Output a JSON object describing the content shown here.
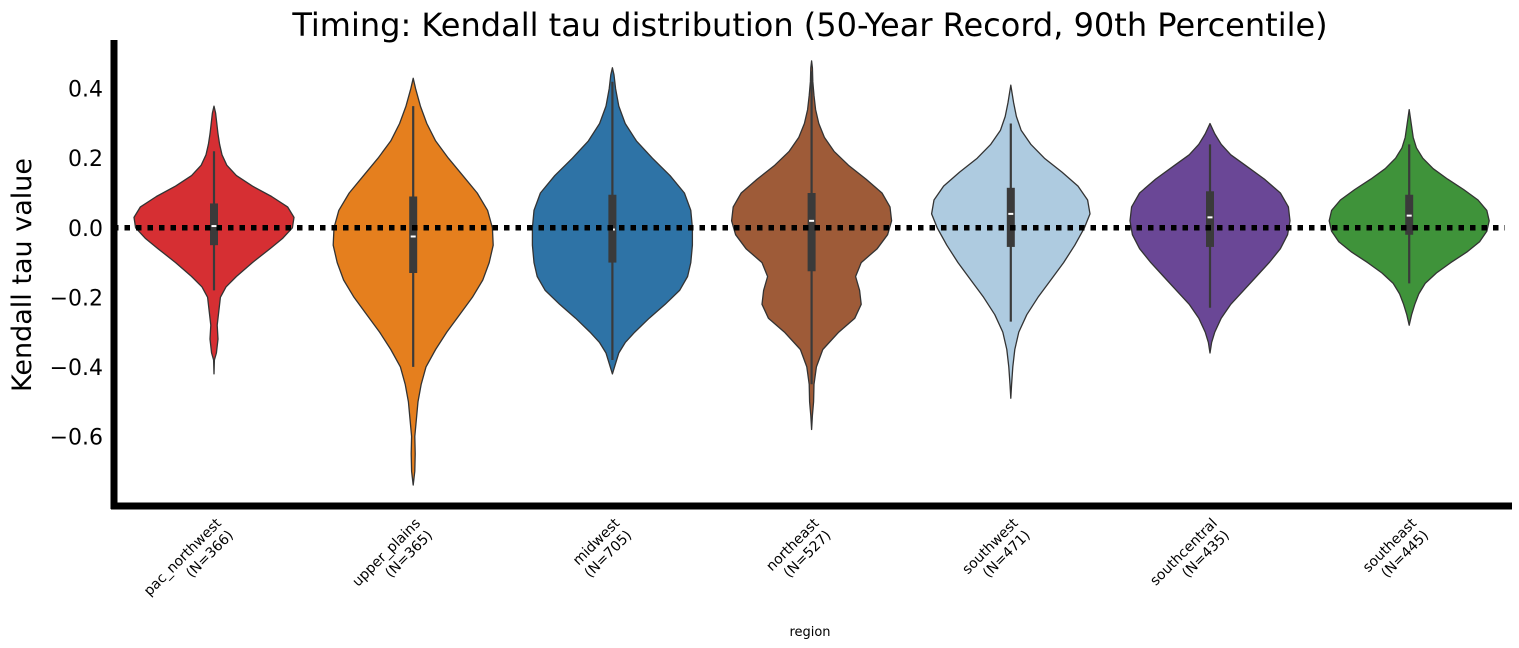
{
  "chart_data": {
    "type": "violin",
    "title": "Timing: Kendall tau distribution (50-Year Record, 90th Percentile)",
    "xlabel": "region",
    "ylabel": "Kendall tau value",
    "ylim": [
      -0.8,
      0.54
    ],
    "yticks": [
      {
        "value": 0.4,
        "label": "0.4"
      },
      {
        "value": 0.2,
        "label": "0.2"
      },
      {
        "value": 0.0,
        "label": "0.0"
      },
      {
        "value": -0.2,
        "label": "−0.2"
      },
      {
        "value": -0.4,
        "label": "−0.4"
      },
      {
        "value": -0.6,
        "label": "−0.6"
      }
    ],
    "reference_line": {
      "y": 0.0,
      "style": "dotted",
      "color": "#000000"
    },
    "grid": false,
    "categories": [
      {
        "line1": "pac_northwest",
        "line2": "(N=366)"
      },
      {
        "line1": "upper_plains",
        "line2": "(N=365)"
      },
      {
        "line1": "midwest",
        "line2": "(N=705)"
      },
      {
        "line1": "northeast",
        "line2": "(N=527)"
      },
      {
        "line1": "southwest",
        "line2": "(N=471)"
      },
      {
        "line1": "southcentral",
        "line2": "(N=435)"
      },
      {
        "line1": "southeast",
        "line2": "(N=445)"
      }
    ],
    "series": [
      {
        "color": "#d62f33",
        "min": -0.42,
        "max": 0.35,
        "q1": -0.05,
        "median": 0.005,
        "q3": 0.07,
        "whisker_low": -0.18,
        "whisker_high": 0.22,
        "profile": [
          [
            -0.42,
            0
          ],
          [
            -0.38,
            0.005
          ],
          [
            -0.36,
            0.03
          ],
          [
            -0.32,
            0.05
          ],
          [
            -0.28,
            0.04
          ],
          [
            -0.24,
            0.06
          ],
          [
            -0.2,
            0.08
          ],
          [
            -0.17,
            0.15
          ],
          [
            -0.14,
            0.28
          ],
          [
            -0.1,
            0.48
          ],
          [
            -0.06,
            0.7
          ],
          [
            -0.03,
            0.86
          ],
          [
            0.0,
            0.98
          ],
          [
            0.03,
            1.0
          ],
          [
            0.06,
            0.92
          ],
          [
            0.09,
            0.72
          ],
          [
            0.12,
            0.48
          ],
          [
            0.15,
            0.28
          ],
          [
            0.18,
            0.16
          ],
          [
            0.21,
            0.1
          ],
          [
            0.24,
            0.07
          ],
          [
            0.27,
            0.05
          ],
          [
            0.3,
            0.035
          ],
          [
            0.33,
            0.02
          ],
          [
            0.35,
            0
          ]
        ]
      },
      {
        "color": "#e57f1e",
        "min": -0.74,
        "max": 0.43,
        "q1": -0.13,
        "median": -0.025,
        "q3": 0.09,
        "whisker_low": -0.4,
        "whisker_high": 0.35,
        "profile": [
          [
            -0.74,
            0
          ],
          [
            -0.7,
            0.02
          ],
          [
            -0.65,
            0.025
          ],
          [
            -0.6,
            0.02
          ],
          [
            -0.55,
            0.04
          ],
          [
            -0.5,
            0.06
          ],
          [
            -0.45,
            0.1
          ],
          [
            -0.4,
            0.16
          ],
          [
            -0.35,
            0.28
          ],
          [
            -0.3,
            0.42
          ],
          [
            -0.25,
            0.58
          ],
          [
            -0.2,
            0.74
          ],
          [
            -0.15,
            0.87
          ],
          [
            -0.1,
            0.95
          ],
          [
            -0.05,
            1.0
          ],
          [
            0.0,
            0.99
          ],
          [
            0.05,
            0.93
          ],
          [
            0.1,
            0.8
          ],
          [
            0.15,
            0.62
          ],
          [
            0.2,
            0.44
          ],
          [
            0.25,
            0.28
          ],
          [
            0.3,
            0.17
          ],
          [
            0.35,
            0.09
          ],
          [
            0.4,
            0.03
          ],
          [
            0.43,
            0
          ]
        ]
      },
      {
        "color": "#2e73a6",
        "min": -0.42,
        "max": 0.46,
        "q1": -0.1,
        "median": -0.005,
        "q3": 0.095,
        "whisker_low": -0.38,
        "whisker_high": 0.42,
        "profile": [
          [
            -0.42,
            0
          ],
          [
            -0.39,
            0.04
          ],
          [
            -0.36,
            0.08
          ],
          [
            -0.33,
            0.16
          ],
          [
            -0.3,
            0.28
          ],
          [
            -0.26,
            0.46
          ],
          [
            -0.22,
            0.66
          ],
          [
            -0.18,
            0.84
          ],
          [
            -0.14,
            0.94
          ],
          [
            -0.1,
            0.98
          ],
          [
            -0.05,
            1.0
          ],
          [
            0.0,
            1.0
          ],
          [
            0.05,
            0.98
          ],
          [
            0.1,
            0.9
          ],
          [
            0.15,
            0.72
          ],
          [
            0.2,
            0.5
          ],
          [
            0.25,
            0.3
          ],
          [
            0.3,
            0.16
          ],
          [
            0.35,
            0.08
          ],
          [
            0.4,
            0.04
          ],
          [
            0.44,
            0.02
          ],
          [
            0.46,
            0
          ]
        ]
      },
      {
        "color": "#9e5b38",
        "min": -0.58,
        "max": 0.48,
        "q1": -0.125,
        "median": 0.02,
        "q3": 0.1,
        "whisker_low": -0.45,
        "whisker_high": 0.45,
        "profile": [
          [
            -0.58,
            0
          ],
          [
            -0.54,
            0.01
          ],
          [
            -0.5,
            0.025
          ],
          [
            -0.45,
            0.03
          ],
          [
            -0.4,
            0.06
          ],
          [
            -0.35,
            0.14
          ],
          [
            -0.3,
            0.34
          ],
          [
            -0.26,
            0.54
          ],
          [
            -0.22,
            0.62
          ],
          [
            -0.18,
            0.6
          ],
          [
            -0.14,
            0.55
          ],
          [
            -0.1,
            0.62
          ],
          [
            -0.06,
            0.82
          ],
          [
            -0.02,
            0.95
          ],
          [
            0.02,
            1.0
          ],
          [
            0.06,
            0.98
          ],
          [
            0.1,
            0.88
          ],
          [
            0.14,
            0.68
          ],
          [
            0.18,
            0.46
          ],
          [
            0.22,
            0.28
          ],
          [
            0.26,
            0.16
          ],
          [
            0.3,
            0.09
          ],
          [
            0.34,
            0.05
          ],
          [
            0.38,
            0.03
          ],
          [
            0.42,
            0.015
          ],
          [
            0.46,
            0.01
          ],
          [
            0.48,
            0
          ]
        ]
      },
      {
        "color": "#aecbe0",
        "min": -0.49,
        "max": 0.41,
        "q1": -0.055,
        "median": 0.04,
        "q3": 0.115,
        "whisker_low": -0.27,
        "whisker_high": 0.3,
        "profile": [
          [
            -0.49,
            0
          ],
          [
            -0.45,
            0.01
          ],
          [
            -0.4,
            0.025
          ],
          [
            -0.35,
            0.05
          ],
          [
            -0.3,
            0.1
          ],
          [
            -0.25,
            0.2
          ],
          [
            -0.2,
            0.34
          ],
          [
            -0.15,
            0.5
          ],
          [
            -0.1,
            0.66
          ],
          [
            -0.05,
            0.8
          ],
          [
            0.0,
            0.92
          ],
          [
            0.04,
            0.99
          ],
          [
            0.08,
            0.96
          ],
          [
            0.12,
            0.84
          ],
          [
            0.16,
            0.64
          ],
          [
            0.2,
            0.42
          ],
          [
            0.24,
            0.25
          ],
          [
            0.28,
            0.13
          ],
          [
            0.32,
            0.07
          ],
          [
            0.36,
            0.035
          ],
          [
            0.41,
            0
          ]
        ]
      },
      {
        "color": "#6a4796",
        "min": -0.36,
        "max": 0.3,
        "q1": -0.055,
        "median": 0.03,
        "q3": 0.105,
        "whisker_low": -0.23,
        "whisker_high": 0.24,
        "profile": [
          [
            -0.36,
            0
          ],
          [
            -0.33,
            0.02
          ],
          [
            -0.3,
            0.06
          ],
          [
            -0.26,
            0.14
          ],
          [
            -0.22,
            0.26
          ],
          [
            -0.18,
            0.42
          ],
          [
            -0.14,
            0.58
          ],
          [
            -0.1,
            0.74
          ],
          [
            -0.06,
            0.88
          ],
          [
            -0.02,
            0.97
          ],
          [
            0.02,
            1.0
          ],
          [
            0.06,
            0.98
          ],
          [
            0.1,
            0.88
          ],
          [
            0.14,
            0.68
          ],
          [
            0.18,
            0.44
          ],
          [
            0.21,
            0.26
          ],
          [
            0.24,
            0.14
          ],
          [
            0.27,
            0.06
          ],
          [
            0.3,
            0
          ]
        ]
      },
      {
        "color": "#3f933a",
        "min": -0.28,
        "max": 0.34,
        "q1": -0.02,
        "median": 0.035,
        "q3": 0.095,
        "whisker_low": -0.16,
        "whisker_high": 0.24,
        "profile": [
          [
            -0.28,
            0
          ],
          [
            -0.25,
            0.03
          ],
          [
            -0.22,
            0.07
          ],
          [
            -0.19,
            0.12
          ],
          [
            -0.16,
            0.2
          ],
          [
            -0.13,
            0.34
          ],
          [
            -0.1,
            0.52
          ],
          [
            -0.07,
            0.72
          ],
          [
            -0.04,
            0.88
          ],
          [
            -0.01,
            0.97
          ],
          [
            0.02,
            1.0
          ],
          [
            0.05,
            0.97
          ],
          [
            0.08,
            0.86
          ],
          [
            0.11,
            0.68
          ],
          [
            0.14,
            0.48
          ],
          [
            0.17,
            0.3
          ],
          [
            0.2,
            0.17
          ],
          [
            0.23,
            0.09
          ],
          [
            0.26,
            0.05
          ],
          [
            0.3,
            0.025
          ],
          [
            0.34,
            0
          ]
        ]
      }
    ]
  }
}
